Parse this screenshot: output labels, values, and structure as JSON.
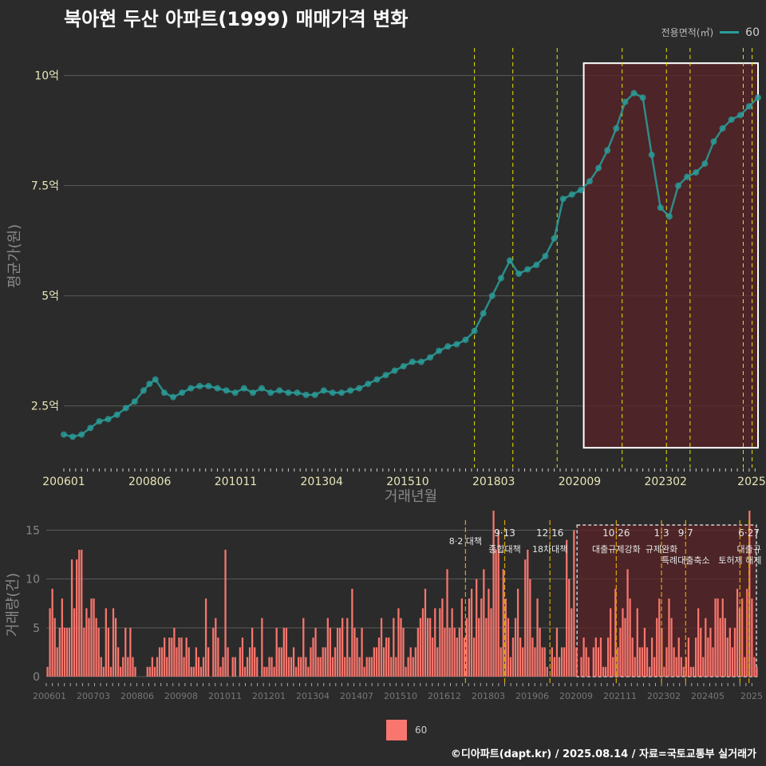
{
  "title": "북아현 두산 아파트(1999) 매매가격 변화",
  "caption": "©디아파트(dapt.kr) / 2025.08.14 / 자료=국토교통부 실거래가",
  "legend_top": {
    "title": "전용면적(㎡)",
    "item": "60"
  },
  "legend_bottom": {
    "item": "60"
  },
  "colors": {
    "background": "#2b2b2b",
    "price_series": "#2a9d9a",
    "volume_bars": "#f8766d",
    "highlight_fill": "#5a2327",
    "policy_line_top": "#e5e500",
    "policy_line_bottom": "#e0a400"
  },
  "chart_data": [
    {
      "type": "scatter",
      "ylabel": "평균가(원)",
      "xlabel": "거래년월",
      "x_tick_labels": [
        "200601",
        "200806",
        "201011",
        "201304",
        "201510",
        "201803",
        "202009",
        "202302",
        "2025"
      ],
      "y_tick_labels": [
        "2.5억",
        "5억",
        "7.5억",
        "10억"
      ],
      "y_ticks_eok": [
        2.5,
        5,
        7.5,
        10
      ],
      "ylim_eok": [
        1.1,
        10.7
      ],
      "xlim": [
        "2006-01",
        "2025-08"
      ],
      "series": [
        {
          "name": "60",
          "points": [
            [
              "2006-01",
              1.85
            ],
            [
              "2006-04",
              1.8
            ],
            [
              "2006-07",
              1.85
            ],
            [
              "2006-10",
              2.0
            ],
            [
              "2007-01",
              2.15
            ],
            [
              "2007-04",
              2.2
            ],
            [
              "2007-07",
              2.3
            ],
            [
              "2007-10",
              2.45
            ],
            [
              "2008-01",
              2.6
            ],
            [
              "2008-04",
              2.85
            ],
            [
              "2008-06",
              3.0
            ],
            [
              "2008-08",
              3.1
            ],
            [
              "2008-11",
              2.8
            ],
            [
              "2009-02",
              2.7
            ],
            [
              "2009-05",
              2.8
            ],
            [
              "2009-08",
              2.9
            ],
            [
              "2009-11",
              2.95
            ],
            [
              "2010-02",
              2.95
            ],
            [
              "2010-05",
              2.9
            ],
            [
              "2010-08",
              2.85
            ],
            [
              "2010-11",
              2.8
            ],
            [
              "2011-02",
              2.9
            ],
            [
              "2011-05",
              2.8
            ],
            [
              "2011-08",
              2.9
            ],
            [
              "2011-11",
              2.8
            ],
            [
              "2012-02",
              2.85
            ],
            [
              "2012-05",
              2.8
            ],
            [
              "2012-08",
              2.8
            ],
            [
              "2012-11",
              2.75
            ],
            [
              "2013-02",
              2.75
            ],
            [
              "2013-05",
              2.85
            ],
            [
              "2013-08",
              2.8
            ],
            [
              "2013-11",
              2.8
            ],
            [
              "2014-02",
              2.85
            ],
            [
              "2014-05",
              2.9
            ],
            [
              "2014-08",
              3.0
            ],
            [
              "2014-11",
              3.1
            ],
            [
              "2015-02",
              3.2
            ],
            [
              "2015-05",
              3.3
            ],
            [
              "2015-08",
              3.4
            ],
            [
              "2015-11",
              3.5
            ],
            [
              "2016-02",
              3.5
            ],
            [
              "2016-05",
              3.6
            ],
            [
              "2016-08",
              3.75
            ],
            [
              "2016-11",
              3.85
            ],
            [
              "2017-02",
              3.9
            ],
            [
              "2017-05",
              4.0
            ],
            [
              "2017-08",
              4.2
            ],
            [
              "2017-11",
              4.6
            ],
            [
              "2018-02",
              5.0
            ],
            [
              "2018-05",
              5.4
            ],
            [
              "2018-08",
              5.8
            ],
            [
              "2018-11",
              5.5
            ],
            [
              "2019-02",
              5.6
            ],
            [
              "2019-05",
              5.7
            ],
            [
              "2019-08",
              5.9
            ],
            [
              "2019-11",
              6.3
            ],
            [
              "2020-02",
              7.2
            ],
            [
              "2020-05",
              7.3
            ],
            [
              "2020-08",
              7.4
            ],
            [
              "2020-11",
              7.6
            ],
            [
              "2021-02",
              7.9
            ],
            [
              "2021-05",
              8.3
            ],
            [
              "2021-08",
              8.8
            ],
            [
              "2021-11",
              9.4
            ],
            [
              "2022-02",
              9.6
            ],
            [
              "2022-05",
              9.5
            ],
            [
              "2022-08",
              8.2
            ],
            [
              "2022-11",
              7.0
            ],
            [
              "2023-02",
              6.8
            ],
            [
              "2023-05",
              7.5
            ],
            [
              "2023-08",
              7.7
            ],
            [
              "2023-11",
              7.8
            ],
            [
              "2024-02",
              8.0
            ],
            [
              "2024-05",
              8.5
            ],
            [
              "2024-08",
              8.8
            ],
            [
              "2024-11",
              9.0
            ],
            [
              "2025-02",
              9.1
            ],
            [
              "2025-05",
              9.3
            ],
            [
              "2025-08",
              9.5
            ]
          ]
        }
      ],
      "policy_dates": [
        "2017-08",
        "2018-09",
        "2019-12",
        "2021-10",
        "2023-01",
        "2023-09",
        "2025-03",
        "2025-06"
      ],
      "highlight_range": [
        "2020-09",
        "2025-08"
      ]
    },
    {
      "type": "bar",
      "ylabel": "거래량(건)",
      "y_tick_labels": [
        "0",
        "5",
        "10",
        "15"
      ],
      "y_ticks": [
        0,
        5,
        10,
        15
      ],
      "ylim": [
        0,
        17
      ],
      "x_tick_labels": [
        "200601",
        "200703",
        "200806",
        "200908",
        "201011",
        "201201",
        "201304",
        "201407",
        "201510",
        "201612",
        "201803",
        "201906",
        "202009",
        "202111",
        "202302",
        "202405",
        "2025"
      ],
      "series": [
        {
          "name": "60"
        }
      ],
      "values": [
        1,
        7,
        9,
        6,
        3,
        5,
        8,
        5,
        5,
        5,
        12,
        7,
        12,
        13,
        13,
        5,
        7,
        6,
        8,
        8,
        6,
        5,
        2,
        1,
        7,
        5,
        1,
        7,
        6,
        3,
        1,
        2,
        5,
        2,
        5,
        2,
        1,
        0,
        0,
        0,
        0,
        1,
        1,
        2,
        1,
        2,
        3,
        3,
        4,
        2,
        4,
        4,
        5,
        3,
        4,
        4,
        2,
        4,
        3,
        1,
        1,
        3,
        2,
        1,
        2,
        8,
        3,
        0,
        5,
        6,
        4,
        1,
        2,
        13,
        3,
        0,
        2,
        2,
        0,
        3,
        4,
        1,
        2,
        3,
        5,
        3,
        2,
        0,
        6,
        1,
        1,
        2,
        2,
        1,
        5,
        3,
        3,
        5,
        5,
        2,
        2,
        3,
        1,
        2,
        2,
        6,
        2,
        1,
        3,
        4,
        5,
        2,
        2,
        3,
        3,
        6,
        5,
        2,
        3,
        5,
        5,
        6,
        2,
        6,
        2,
        9,
        5,
        4,
        2,
        5,
        1,
        2,
        2,
        2,
        3,
        3,
        4,
        6,
        3,
        4,
        4,
        2,
        6,
        2,
        7,
        6,
        5,
        1,
        2,
        3,
        2,
        3,
        5,
        6,
        7,
        9,
        6,
        6,
        4,
        7,
        3,
        7,
        8,
        5,
        11,
        5,
        7,
        5,
        4,
        5,
        8,
        4,
        6,
        8,
        9,
        4,
        10,
        6,
        8,
        11,
        6,
        9,
        7,
        17,
        13,
        15,
        3,
        11,
        8,
        6,
        2,
        4,
        6,
        9,
        4,
        3,
        12,
        13,
        10,
        4,
        3,
        8,
        5,
        3,
        3,
        1,
        0,
        3,
        2,
        5,
        2,
        3,
        3,
        14,
        10,
        7,
        15,
        3,
        0,
        2,
        4,
        3,
        2,
        0,
        3,
        4,
        3,
        4,
        1,
        1,
        4,
        7,
        2,
        9,
        3,
        5,
        7,
        6,
        11,
        8,
        4,
        2,
        7,
        3,
        3,
        5,
        3,
        1,
        4,
        2,
        6,
        8,
        5,
        1,
        3,
        8,
        6,
        3,
        2,
        4,
        2,
        1,
        2,
        4,
        1,
        1,
        4,
        7,
        5,
        2,
        6,
        4,
        5,
        3,
        8,
        8,
        6,
        8,
        6,
        4,
        5,
        3,
        5,
        9,
        7,
        8,
        2,
        9,
        17,
        8,
        2,
        1
      ],
      "policy_annotations": [
        {
          "date": "2017-08",
          "line1": "",
          "line2": "8·2 대책"
        },
        {
          "date": "2018-09",
          "line1": "9·13",
          "line2": "종합대책"
        },
        {
          "date": "2019-12",
          "line1": "12·16",
          "line2": "18차대책"
        },
        {
          "date": "2021-10",
          "line1": "10·26",
          "line2": "대출규제강화"
        },
        {
          "date": "2023-01",
          "line1": "1·3",
          "line2": "규제완화"
        },
        {
          "date": "2023-09",
          "line1": "9·7",
          "line2": "특례대출축소"
        },
        {
          "date": "2025-03",
          "line1": "",
          "line2": "토허제 해제"
        },
        {
          "date": "2025-06",
          "line1": "6·27",
          "line2": "대출규"
        }
      ],
      "highlight_range": [
        "2020-09",
        "2025-08"
      ]
    }
  ]
}
